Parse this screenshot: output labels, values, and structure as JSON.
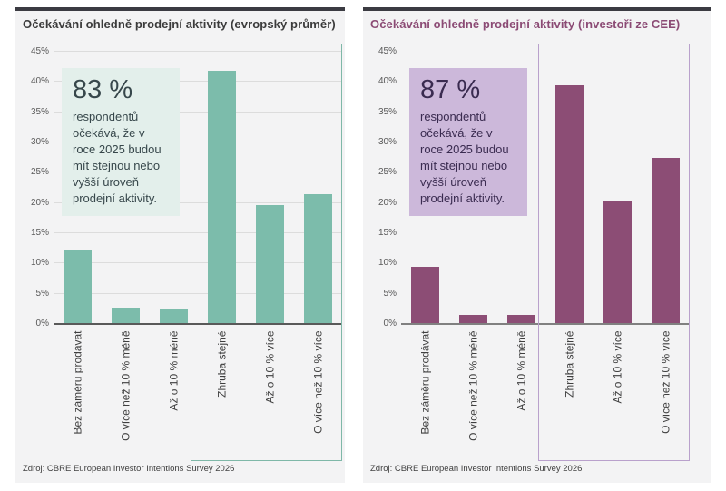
{
  "chart_data": [
    {
      "type": "bar",
      "title": "Očekávání ohledně prodejní aktivity (evropský průměr)",
      "title_color": "#3b3b3b",
      "categories": [
        "Bez záměru prodávat",
        "O více než 10 % méně",
        "Až o 10 % méně",
        "Zhruba stejné",
        "Až o 10 % více",
        "O více než 10 % více"
      ],
      "values": [
        12.3,
        2.7,
        2.4,
        41.8,
        19.6,
        21.4
      ],
      "ylim": [
        0,
        45
      ],
      "yticks": [
        "0%",
        "5%",
        "10%",
        "15%",
        "20%",
        "25%",
        "30%",
        "35%",
        "40%",
        "45%"
      ],
      "grid": true,
      "grid_color": "#dcdcdc",
      "axis_color": "#595959",
      "bar_color": "#7cbcab",
      "highlight_box": {
        "covers_categories": [
          "Zhruba stejné",
          "Až o 10 % více",
          "O více než 10 % více"
        ],
        "border_color": "#7fb8a8"
      },
      "annotation": {
        "headline": "83 %",
        "body": "respondentů očekává, že v roce 2025 budou mít stejnou nebo vyšší úroveň prodejní aktivity.",
        "background": "#e3efeb",
        "text_color": "#37474b"
      },
      "source": "Zdroj: CBRE European Investor Intentions Survey 2026"
    },
    {
      "type": "bar",
      "title": "Očekávání ohledně prodejní aktivity (investoři ze CEE)",
      "title_color": "#8b4a74",
      "categories": [
        "Bez záměru prodávat",
        "O více než 10 % méně",
        "Až o 10 % méně",
        "Zhruba stejné",
        "Až o 10 % více",
        "O více než 10 % více"
      ],
      "values": [
        9.5,
        1.5,
        1.5,
        39.4,
        20.3,
        27.4
      ],
      "ylim": [
        0,
        45
      ],
      "yticks": [
        "0%",
        "5%",
        "10%",
        "15%",
        "20%",
        "25%",
        "30%",
        "35%",
        "40%",
        "45%"
      ],
      "grid": false,
      "grid_color": "#dcdcdc",
      "axis_color": "#808080",
      "bar_color": "#8c4d75",
      "highlight_box": {
        "covers_categories": [
          "Zhruba stejné",
          "Až o 10 % více",
          "O více než 10 % více"
        ],
        "border_color": "#b9a1cc"
      },
      "annotation": {
        "headline": "87 %",
        "body": "respondentů očekává, že v roce 2025 budou mít stejnou nebo vyšší úroveň prodejní aktivity.",
        "background": "#ccb8da",
        "text_color": "#3a2b50"
      },
      "source": "Zdroj: CBRE European Investor Intentions Survey 2026"
    }
  ]
}
